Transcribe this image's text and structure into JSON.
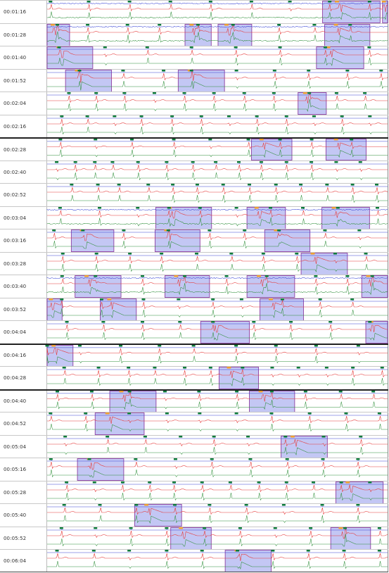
{
  "rows": [
    {
      "time": "00:01:16",
      "thick": false,
      "noise": true,
      "events": [
        {
          "s": 0.809,
          "e": 0.978
        },
        {
          "s": 0.985,
          "e": 1.0
        }
      ],
      "beats": [
        0.01,
        0.122,
        0.242,
        0.362,
        0.48,
        0.6,
        0.713,
        0.83,
        0.947
      ]
    },
    {
      "time": "00:01:28",
      "thick": false,
      "noise": true,
      "events": [
        {
          "s": 0.0,
          "e": 0.066
        },
        {
          "s": 0.405,
          "e": 0.482
        },
        {
          "s": 0.502,
          "e": 0.601
        },
        {
          "s": 0.815,
          "e": 0.948
        }
      ],
      "beats": [
        0.03,
        0.119,
        0.236,
        0.33,
        0.443,
        0.546,
        0.681,
        0.785,
        0.89
      ]
    },
    {
      "time": "00:01:40",
      "thick": false,
      "noise": false,
      "events": [
        {
          "s": 0.0,
          "e": 0.134
        },
        {
          "s": 0.791,
          "e": 0.93
        }
      ],
      "beats": [
        0.035,
        0.17,
        0.294,
        0.424,
        0.554,
        0.684,
        0.817,
        0.946
      ]
    },
    {
      "time": "00:01:52",
      "thick": false,
      "noise": false,
      "events": [
        {
          "s": 0.054,
          "e": 0.189
        },
        {
          "s": 0.385,
          "e": 0.521
        }
      ],
      "beats": [
        0.095,
        0.223,
        0.342,
        0.424,
        0.556,
        0.668,
        0.768,
        0.882,
        0.981
      ]
    },
    {
      "time": "00:02:04",
      "thick": false,
      "noise": false,
      "events": [
        {
          "s": 0.737,
          "e": 0.82
        }
      ],
      "beats": [
        0.064,
        0.144,
        0.227,
        0.315,
        0.403,
        0.49,
        0.579,
        0.666,
        0.77,
        0.85,
        0.933
      ]
    },
    {
      "time": "00:02:16",
      "thick": false,
      "noise": false,
      "events": [],
      "beats": [
        0.043,
        0.118,
        0.198,
        0.277,
        0.367,
        0.453,
        0.534,
        0.616,
        0.703,
        0.784,
        0.866,
        0.948
      ]
    },
    {
      "time": "00:02:28",
      "thick": true,
      "noise": false,
      "events": [
        {
          "s": 0.6,
          "e": 0.719
        },
        {
          "s": 0.819,
          "e": 0.937
        }
      ],
      "beats": [
        0.039,
        0.142,
        0.249,
        0.372,
        0.479,
        0.591,
        0.684,
        0.777,
        0.894
      ]
    },
    {
      "time": "00:02:40",
      "thick": false,
      "noise": false,
      "events": [],
      "beats": [
        0.028,
        0.083,
        0.14,
        0.192,
        0.267,
        0.351,
        0.428,
        0.495,
        0.563,
        0.629,
        0.703,
        0.776,
        0.849,
        0.92
      ]
    },
    {
      "time": "00:02:52",
      "thick": false,
      "noise": false,
      "events": [],
      "beats": [
        0.072,
        0.149,
        0.211,
        0.297,
        0.369,
        0.441,
        0.517,
        0.594,
        0.672,
        0.745,
        0.822,
        0.897,
        0.968
      ]
    },
    {
      "time": "00:03:04",
      "thick": false,
      "noise": true,
      "events": [
        {
          "s": 0.319,
          "e": 0.483
        },
        {
          "s": 0.587,
          "e": 0.7
        },
        {
          "s": 0.807,
          "e": 0.947
        }
      ],
      "beats": [
        0.038,
        0.154,
        0.266,
        0.358,
        0.449,
        0.556,
        0.656,
        0.751,
        0.854,
        0.97
      ]
    },
    {
      "time": "00:03:16",
      "thick": false,
      "noise": false,
      "events": [
        {
          "s": 0.071,
          "e": 0.196
        },
        {
          "s": 0.317,
          "e": 0.449
        },
        {
          "s": 0.639,
          "e": 0.772
        }
      ],
      "beats": [
        0.02,
        0.105,
        0.225,
        0.356,
        0.477,
        0.58,
        0.681,
        0.816,
        0.917
      ]
    },
    {
      "time": "00:03:28",
      "thick": false,
      "noise": false,
      "events": [
        {
          "s": 0.746,
          "e": 0.882
        }
      ],
      "beats": [
        0.046,
        0.145,
        0.243,
        0.336,
        0.439,
        0.541,
        0.635,
        0.733,
        0.846,
        0.936
      ]
    },
    {
      "time": "00:03:40",
      "thick": false,
      "noise": true,
      "events": [
        {
          "s": 0.082,
          "e": 0.217
        },
        {
          "s": 0.346,
          "e": 0.477
        },
        {
          "s": 0.587,
          "e": 0.727
        },
        {
          "s": 0.924,
          "e": 1.0
        }
      ],
      "beats": [
        0.044,
        0.142,
        0.28,
        0.404,
        0.527,
        0.645,
        0.789,
        0.882,
        0.955
      ]
    },
    {
      "time": "00:03:52",
      "thick": false,
      "noise": false,
      "events": [
        {
          "s": 0.0,
          "e": 0.044
        },
        {
          "s": 0.156,
          "e": 0.262
        },
        {
          "s": 0.625,
          "e": 0.753
        }
      ],
      "beats": [
        0.043,
        0.16,
        0.283,
        0.386,
        0.487,
        0.571,
        0.691,
        0.802,
        0.896
      ]
    },
    {
      "time": "00:04:04",
      "thick": false,
      "noise": false,
      "events": [
        {
          "s": 0.451,
          "e": 0.594
        },
        {
          "s": 0.936,
          "e": 1.0
        }
      ],
      "beats": [
        0.058,
        0.165,
        0.28,
        0.39,
        0.487,
        0.607,
        0.716,
        0.832,
        0.948
      ]
    },
    {
      "time": "00:04:16",
      "thick": true,
      "noise": false,
      "events": [
        {
          "s": 0.0,
          "e": 0.076
        }
      ],
      "beats": [
        0.0,
        0.096,
        0.216,
        0.33,
        0.43,
        0.555,
        0.672,
        0.79,
        0.914
      ]
    },
    {
      "time": "00:04:28",
      "thick": false,
      "noise": false,
      "events": [
        {
          "s": 0.505,
          "e": 0.621
        }
      ],
      "beats": [
        0.05,
        0.151,
        0.239,
        0.316,
        0.404,
        0.48,
        0.574,
        0.661,
        0.738,
        0.821,
        0.898,
        0.984
      ]
    },
    {
      "time": "00:04:40",
      "thick": true,
      "noise": false,
      "events": [
        {
          "s": 0.184,
          "e": 0.32
        },
        {
          "s": 0.594,
          "e": 0.727
        }
      ],
      "beats": [
        0.03,
        0.131,
        0.242,
        0.346,
        0.446,
        0.557,
        0.66,
        0.759,
        0.862,
        0.958
      ]
    },
    {
      "time": "00:04:52",
      "thick": false,
      "noise": false,
      "events": [
        {
          "s": 0.141,
          "e": 0.285
        }
      ],
      "beats": [
        0.01,
        0.113,
        0.241,
        0.352,
        0.448,
        0.556,
        0.659,
        0.771,
        0.878,
        0.976
      ]
    },
    {
      "time": "00:05:04",
      "thick": false,
      "noise": false,
      "events": [
        {
          "s": 0.687,
          "e": 0.823
        }
      ],
      "beats": [
        0.053,
        0.177,
        0.288,
        0.392,
        0.49,
        0.59,
        0.7,
        0.812,
        0.921
      ]
    },
    {
      "time": "00:05:16",
      "thick": false,
      "noise": false,
      "events": [
        {
          "s": 0.089,
          "e": 0.225
        }
      ],
      "beats": [
        0.011,
        0.124,
        0.26,
        0.377,
        0.484,
        0.597,
        0.705,
        0.81,
        0.913
      ]
    },
    {
      "time": "00:05:28",
      "thick": false,
      "noise": false,
      "events": [
        {
          "s": 0.848,
          "e": 0.987
        }
      ],
      "beats": [
        0.057,
        0.139,
        0.222,
        0.301,
        0.373,
        0.455,
        0.538,
        0.622,
        0.703,
        0.782,
        0.864,
        0.948
      ]
    },
    {
      "time": "00:05:40",
      "thick": false,
      "noise": false,
      "events": [
        {
          "s": 0.257,
          "e": 0.395
        }
      ],
      "beats": [
        0.05,
        0.155,
        0.262,
        0.375,
        0.477,
        0.585,
        0.695,
        0.808,
        0.913
      ]
    },
    {
      "time": "00:05:52",
      "thick": false,
      "noise": false,
      "events": [
        {
          "s": 0.363,
          "e": 0.482
        },
        {
          "s": 0.833,
          "e": 0.95
        }
      ],
      "beats": [
        0.042,
        0.142,
        0.246,
        0.351,
        0.462,
        0.567,
        0.67,
        0.774,
        0.875,
        0.976
      ]
    },
    {
      "time": "00:06:04",
      "thick": false,
      "noise": false,
      "events": [
        {
          "s": 0.523,
          "e": 0.658
        }
      ],
      "beats": [
        0.029,
        0.137,
        0.241,
        0.351,
        0.455,
        0.559,
        0.663,
        0.767,
        0.872,
        0.976
      ]
    }
  ],
  "colors": {
    "trace_top": "#3b47d6",
    "trace_mid": "#e63c3c",
    "trace_bottom": "#2f8f3a",
    "event_fill": "#b8bdf2",
    "event_stroke": "#8d3fa3",
    "beat_marker": "#0c7a3a",
    "event_marker": "#f0a030"
  }
}
